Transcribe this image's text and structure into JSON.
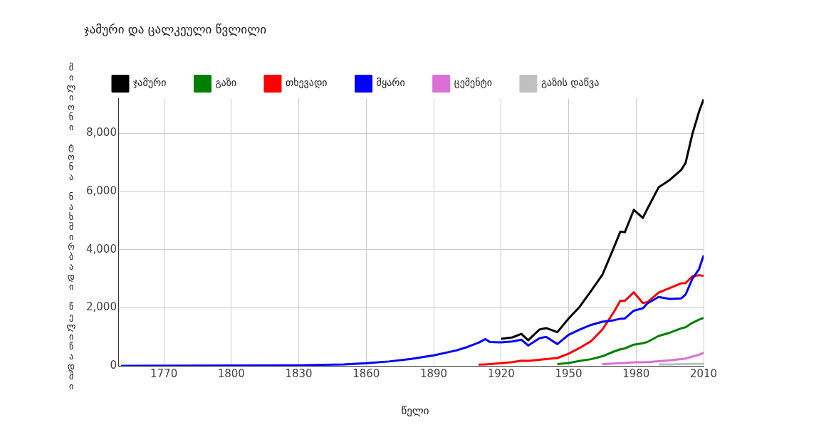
{
  "chart_data": {
    "type": "line",
    "title": "ჯამური და ცალკეული წვლილი",
    "xlabel": "წელი",
    "ylabel": "მილიონი ტონა ნახშირბადი წელიწადში",
    "legend": "top",
    "grid": true,
    "xlim": [
      1750,
      2010
    ],
    "xticks": [
      1770,
      1800,
      1830,
      1860,
      1890,
      1920,
      1950,
      1980,
      2010
    ],
    "ylim": [
      0,
      9200
    ],
    "yticks": [
      0,
      {
        "value": 2000,
        "label": "2,000"
      },
      {
        "value": 4000,
        "label": "4,000"
      },
      {
        "value": 6000,
        "label": "6,000"
      },
      {
        "value": 8000,
        "label": "8,000"
      }
    ],
    "x": [
      1751,
      1800,
      1830,
      1850,
      1860,
      1870,
      1880,
      1890,
      1900,
      1905,
      1910,
      1913,
      1915,
      1920,
      1925,
      1929,
      1932,
      1937,
      1940,
      1945,
      1950,
      1955,
      1960,
      1965,
      1970,
      1973,
      1975,
      1979,
      1983,
      1985,
      1990,
      1995,
      2000,
      2002,
      2005,
      2008,
      2010
    ],
    "series": [
      {
        "name": "ჯამური",
        "color": "#000000",
        "values": [
          null,
          null,
          null,
          null,
          null,
          null,
          null,
          null,
          null,
          null,
          null,
          null,
          null,
          930,
          980,
          1100,
          880,
          1250,
          1300,
          1160,
          1630,
          2040,
          2580,
          3130,
          4050,
          4620,
          4600,
          5370,
          5090,
          5400,
          6140,
          6400,
          6740,
          6980,
          7970,
          8750,
          9170
        ]
      },
      {
        "name": "გაზი",
        "color": "#008000",
        "values": [
          null,
          null,
          null,
          null,
          null,
          null,
          null,
          null,
          null,
          null,
          null,
          null,
          null,
          null,
          null,
          null,
          null,
          null,
          null,
          60,
          100,
          170,
          230,
          330,
          490,
          570,
          600,
          730,
          780,
          820,
          1030,
          1140,
          1290,
          1330,
          1480,
          1590,
          1650
        ]
      },
      {
        "name": "თხევადი",
        "color": "#ff0000",
        "values": [
          null,
          null,
          null,
          null,
          null,
          null,
          null,
          null,
          null,
          null,
          40,
          50,
          60,
          90,
          130,
          180,
          170,
          210,
          230,
          270,
          420,
          620,
          850,
          1250,
          1840,
          2240,
          2240,
          2530,
          2160,
          2190,
          2520,
          2680,
          2840,
          2850,
          3080,
          3120,
          3100
        ]
      },
      {
        "name": "მყარი",
        "color": "#0000ff",
        "values": [
          0,
          10,
          20,
          50,
          90,
          150,
          240,
          360,
          530,
          650,
          800,
          920,
          820,
          810,
          840,
          900,
          700,
          950,
          1000,
          750,
          1070,
          1250,
          1410,
          1520,
          1570,
          1620,
          1630,
          1900,
          1980,
          2150,
          2370,
          2300,
          2320,
          2450,
          2990,
          3330,
          3800
        ]
      },
      {
        "name": "ცემენტი",
        "color": "#da70d6",
        "values": [
          null,
          null,
          null,
          null,
          null,
          null,
          null,
          null,
          null,
          null,
          null,
          null,
          null,
          null,
          null,
          null,
          null,
          null,
          null,
          null,
          null,
          null,
          null,
          60,
          80,
          90,
          100,
          120,
          120,
          130,
          160,
          190,
          230,
          250,
          320,
          380,
          450
        ]
      },
      {
        "name": "გაზის დაწვა",
        "color": "#c0c0c0",
        "values": [
          null,
          null,
          null,
          null,
          null,
          null,
          null,
          null,
          null,
          null,
          null,
          null,
          null,
          null,
          null,
          null,
          null,
          null,
          null,
          null,
          null,
          null,
          null,
          null,
          null,
          null,
          null,
          null,
          null,
          null,
          50,
          50,
          60,
          60,
          70,
          70,
          70
        ]
      }
    ]
  }
}
